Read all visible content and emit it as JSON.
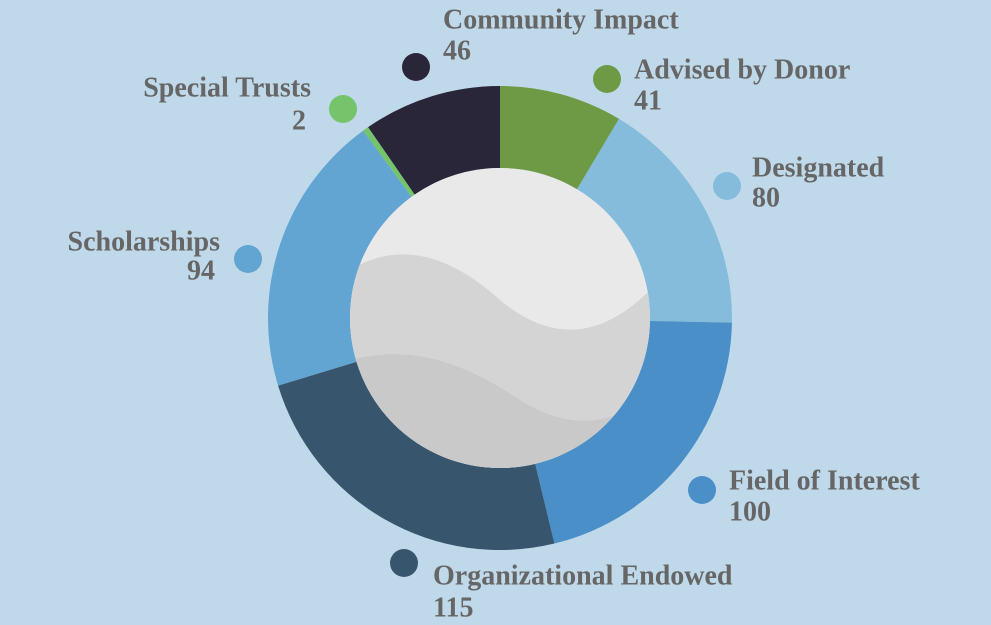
{
  "chart_data": {
    "type": "pie",
    "donut": true,
    "categories": [
      "Advised by Donor",
      "Designated",
      "Field of Interest",
      "Organizational Endowed",
      "Scholarships",
      "Special Trusts",
      "Community Impact"
    ],
    "values": [
      41,
      80,
      100,
      115,
      94,
      2,
      46
    ],
    "colors": [
      "#6f9a45",
      "#85bcdc",
      "#4a8fc7",
      "#37566d",
      "#62a5d2",
      "#75c36a",
      "#2a2639"
    ]
  }
}
